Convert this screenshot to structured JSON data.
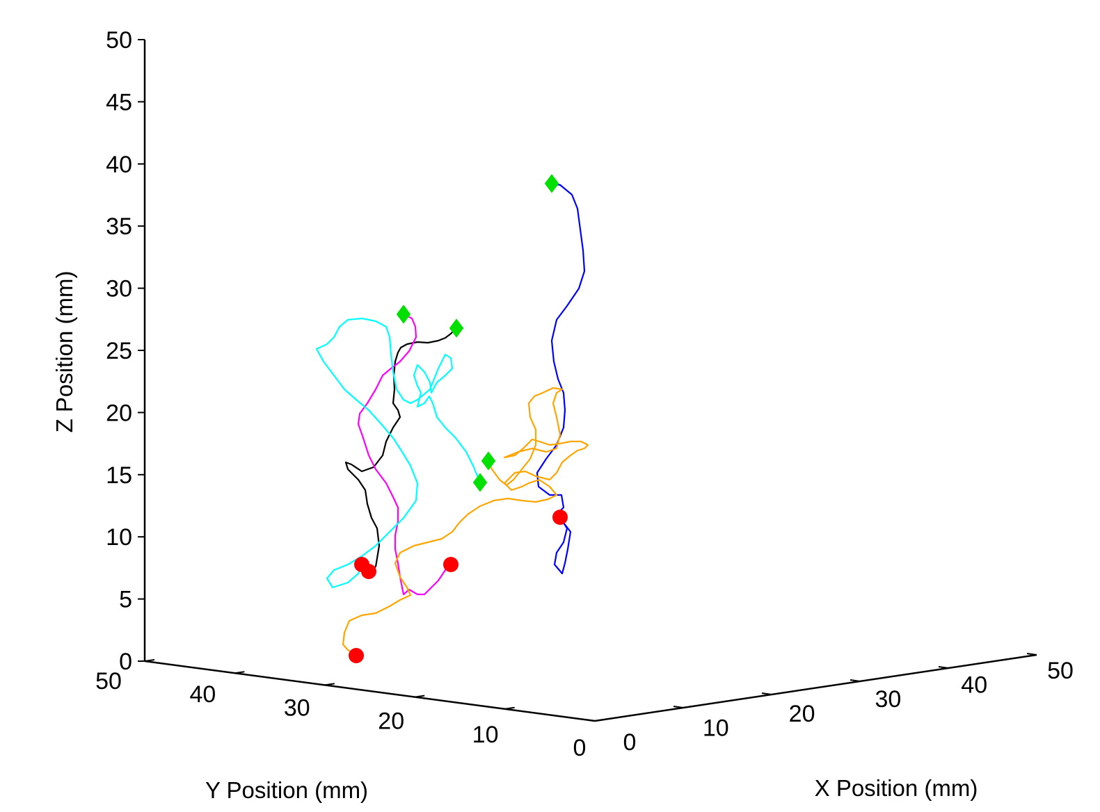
{
  "chart_data": {
    "type": "line",
    "subtype": "3d-trajectories",
    "title": "",
    "xlabel": "X Position (mm)",
    "ylabel": "Y Position (mm)",
    "zlabel": "Z Position (mm)",
    "xlim": [
      0,
      50
    ],
    "ylim": [
      0,
      50
    ],
    "zlim": [
      0,
      50
    ],
    "x_ticks": [
      "0",
      "10",
      "20",
      "30",
      "40",
      "50"
    ],
    "y_ticks": [
      "50",
      "40",
      "30",
      "20",
      "10",
      "0"
    ],
    "z_ticks": [
      "0",
      "5",
      "10",
      "15",
      "20",
      "25",
      "30",
      "35",
      "40",
      "45",
      "50"
    ],
    "grid": false,
    "legend": "none",
    "start_marker_color": "#00e000",
    "end_marker_color": "#ff0000",
    "series": [
      {
        "color": "#0000ff",
        "points": [
          [
            793,
            264
          ],
          [
            805,
            266
          ],
          [
            822,
            280
          ],
          [
            830,
            300
          ],
          [
            834,
            330
          ],
          [
            838,
            360
          ],
          [
            840,
            390
          ],
          [
            832,
            415
          ],
          [
            815,
            440
          ],
          [
            800,
            460
          ],
          [
            793,
            490
          ],
          [
            796,
            520
          ],
          [
            802,
            545
          ],
          [
            810,
            565
          ],
          [
            812,
            590
          ],
          [
            810,
            615
          ],
          [
            800,
            640
          ],
          [
            785,
            660
          ],
          [
            772,
            680
          ],
          [
            774,
            700
          ],
          [
            790,
            712
          ],
          [
            807,
            712
          ],
          [
            810,
            730
          ],
          [
            800,
            740
          ],
          [
            810,
            752
          ],
          [
            820,
            765
          ],
          [
            816,
            790
          ],
          [
            812,
            810
          ],
          [
            808,
            825
          ],
          [
            797,
            812
          ],
          [
            800,
            795
          ],
          [
            810,
            780
          ],
          [
            815,
            760
          ],
          [
            805,
            744
          ]
        ]
      },
      {
        "color": "#000000",
        "points": [
          [
            656,
            472
          ],
          [
            648,
            480
          ],
          [
            640,
            486
          ],
          [
            630,
            490
          ],
          [
            615,
            493
          ],
          [
            600,
            492
          ],
          [
            585,
            495
          ],
          [
            576,
            500
          ],
          [
            572,
            507
          ],
          [
            568,
            520
          ],
          [
            566,
            540
          ],
          [
            567,
            560
          ],
          [
            565,
            580
          ],
          [
            572,
            590
          ],
          [
            575,
            600
          ],
          [
            565,
            615
          ],
          [
            555,
            635
          ],
          [
            550,
            655
          ],
          [
            537,
            672
          ],
          [
            520,
            678
          ],
          [
            505,
            668
          ],
          [
            497,
            665
          ],
          [
            500,
            675
          ],
          [
            515,
            690
          ],
          [
            525,
            705
          ],
          [
            528,
            725
          ],
          [
            534,
            745
          ],
          [
            542,
            760
          ],
          [
            545,
            785
          ],
          [
            540,
            815
          ],
          [
            530,
            822
          ]
        ]
      },
      {
        "color": "#ff00ff",
        "points": [
          [
            580,
            452
          ],
          [
            592,
            458
          ],
          [
            597,
            470
          ],
          [
            598,
            485
          ],
          [
            593,
            495
          ],
          [
            588,
            505
          ],
          [
            575,
            520
          ],
          [
            562,
            530
          ],
          [
            550,
            540
          ],
          [
            540,
            560
          ],
          [
            528,
            580
          ],
          [
            517,
            595
          ],
          [
            515,
            610
          ],
          [
            522,
            630
          ],
          [
            530,
            655
          ],
          [
            540,
            675
          ],
          [
            555,
            695
          ],
          [
            565,
            715
          ],
          [
            572,
            730
          ],
          [
            572,
            750
          ],
          [
            568,
            770
          ],
          [
            568,
            790
          ],
          [
            572,
            810
          ],
          [
            575,
            830
          ],
          [
            580,
            855
          ],
          [
            588,
            848
          ],
          [
            600,
            855
          ],
          [
            610,
            855
          ],
          [
            620,
            845
          ],
          [
            630,
            835
          ],
          [
            640,
            820
          ],
          [
            648,
            812
          ]
        ]
      },
      {
        "color": "#00ffff",
        "points": [
          [
            690,
            694
          ],
          [
            680,
            670
          ],
          [
            670,
            650
          ],
          [
            655,
            630
          ],
          [
            640,
            615
          ],
          [
            628,
            600
          ],
          [
            622,
            580
          ],
          [
            617,
            570
          ],
          [
            610,
            580
          ],
          [
            600,
            585
          ],
          [
            605,
            565
          ],
          [
            600,
            555
          ],
          [
            595,
            540
          ],
          [
            600,
            525
          ],
          [
            610,
            535
          ],
          [
            618,
            550
          ],
          [
            620,
            565
          ],
          [
            628,
            550
          ],
          [
            640,
            540
          ],
          [
            650,
            530
          ],
          [
            648,
            515
          ],
          [
            640,
            510
          ],
          [
            635,
            520
          ],
          [
            630,
            530
          ],
          [
            618,
            560
          ],
          [
            600,
            575
          ],
          [
            590,
            580
          ],
          [
            580,
            575
          ],
          [
            570,
            560
          ],
          [
            565,
            535
          ],
          [
            562,
            510
          ],
          [
            560,
            485
          ],
          [
            555,
            470
          ],
          [
            540,
            462
          ],
          [
            520,
            458
          ],
          [
            500,
            460
          ],
          [
            488,
            470
          ],
          [
            480,
            485
          ],
          [
            470,
            495
          ],
          [
            455,
            502
          ],
          [
            465,
            520
          ],
          [
            480,
            540
          ],
          [
            495,
            560
          ],
          [
            512,
            575
          ],
          [
            530,
            590
          ],
          [
            548,
            610
          ],
          [
            565,
            630
          ],
          [
            578,
            650
          ],
          [
            590,
            670
          ],
          [
            600,
            695
          ],
          [
            598,
            720
          ],
          [
            580,
            745
          ],
          [
            560,
            765
          ],
          [
            540,
            785
          ],
          [
            520,
            800
          ],
          [
            500,
            812
          ],
          [
            480,
            820
          ],
          [
            470,
            832
          ],
          [
            478,
            845
          ],
          [
            500,
            838
          ],
          [
            515,
            825
          ],
          [
            520,
            812
          ]
        ]
      },
      {
        "color": "#ffa500",
        "points": [
          [
            512,
            943
          ],
          [
            500,
            935
          ],
          [
            493,
            927
          ],
          [
            495,
            910
          ],
          [
            502,
            893
          ],
          [
            520,
            885
          ],
          [
            540,
            882
          ],
          [
            560,
            872
          ],
          [
            575,
            863
          ],
          [
            590,
            856
          ],
          [
            585,
            845
          ],
          [
            575,
            830
          ],
          [
            568,
            810
          ],
          [
            575,
            795
          ],
          [
            595,
            785
          ],
          [
            615,
            780
          ],
          [
            635,
            775
          ],
          [
            650,
            765
          ],
          [
            660,
            752
          ],
          [
            672,
            740
          ],
          [
            690,
            728
          ],
          [
            710,
            720
          ],
          [
            730,
            717
          ],
          [
            750,
            720
          ],
          [
            770,
            722
          ],
          [
            788,
            718
          ],
          [
            800,
            712
          ],
          [
            790,
            700
          ],
          [
            775,
            690
          ],
          [
            760,
            695
          ],
          [
            750,
            700
          ],
          [
            735,
            705
          ],
          [
            725,
            695
          ],
          [
            740,
            680
          ],
          [
            755,
            678
          ],
          [
            770,
            685
          ],
          [
            790,
            690
          ],
          [
            800,
            680
          ],
          [
            808,
            665
          ],
          [
            820,
            655
          ],
          [
            830,
            648
          ],
          [
            840,
            645
          ],
          [
            845,
            640
          ],
          [
            835,
            635
          ],
          [
            820,
            635
          ],
          [
            805,
            638
          ],
          [
            790,
            640
          ],
          [
            775,
            635
          ],
          [
            765,
            632
          ],
          [
            752,
            645
          ],
          [
            740,
            655
          ],
          [
            725,
            658
          ],
          [
            745,
            650
          ],
          [
            765,
            645
          ],
          [
            785,
            650
          ],
          [
            800,
            645
          ],
          [
            805,
            625
          ],
          [
            800,
            600
          ],
          [
            795,
            580
          ],
          [
            800,
            565
          ],
          [
            808,
            560
          ],
          [
            795,
            558
          ],
          [
            780,
            565
          ],
          [
            768,
            570
          ],
          [
            760,
            580
          ],
          [
            762,
            600
          ],
          [
            770,
            618
          ],
          [
            770,
            640
          ],
          [
            762,
            660
          ],
          [
            750,
            675
          ],
          [
            738,
            690
          ],
          [
            728,
            698
          ],
          [
            718,
            690
          ],
          [
            707,
            675
          ],
          [
            702,
            663
          ]
        ]
      }
    ],
    "start_markers": [
      [
        793,
        264
      ],
      [
        656,
        472
      ],
      [
        580,
        452
      ],
      [
        690,
        694
      ],
      [
        702,
        663
      ]
    ],
    "end_markers": [
      [
        805,
        744
      ],
      [
        530,
        822
      ],
      [
        648,
        812
      ],
      [
        520,
        812
      ],
      [
        512,
        943
      ]
    ]
  }
}
